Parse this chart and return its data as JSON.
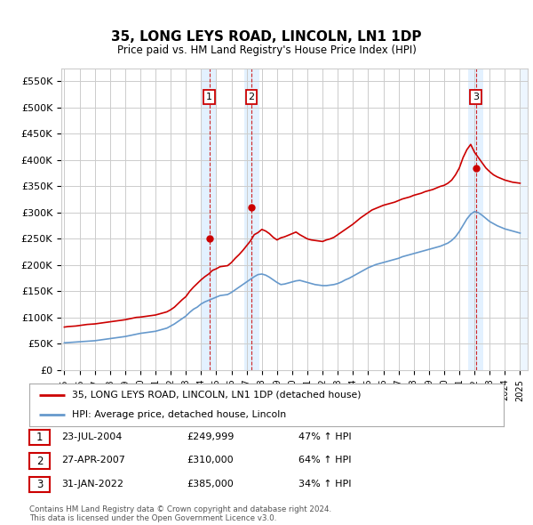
{
  "title": "35, LONG LEYS ROAD, LINCOLN, LN1 1DP",
  "subtitle": "Price paid vs. HM Land Registry's House Price Index (HPI)",
  "ylim": [
    0,
    575000
  ],
  "yticks": [
    0,
    50000,
    100000,
    150000,
    200000,
    250000,
    300000,
    350000,
    400000,
    450000,
    500000,
    550000
  ],
  "ytick_labels": [
    "£0",
    "£50K",
    "£100K",
    "£150K",
    "£200K",
    "£250K",
    "£300K",
    "£350K",
    "£400K",
    "£450K",
    "£500K",
    "£550K"
  ],
  "xlim_start": 1994.8,
  "xlim_end": 2025.5,
  "sale_dates": [
    2004.55,
    2007.32,
    2022.08
  ],
  "sale_prices": [
    249999,
    310000,
    385000
  ],
  "sale_labels": [
    "1",
    "2",
    "3"
  ],
  "sale_date_strs": [
    "23-JUL-2004",
    "27-APR-2007",
    "31-JAN-2022"
  ],
  "sale_price_strs": [
    "£249,999",
    "£310,000",
    "£385,000"
  ],
  "sale_hpi_strs": [
    "47% ↑ HPI",
    "64% ↑ HPI",
    "34% ↑ HPI"
  ],
  "red_color": "#cc0000",
  "blue_color": "#6699cc",
  "shade_color": "#ddeeff",
  "grid_color": "#cccccc",
  "background_color": "#ffffff",
  "legend_label_red": "35, LONG LEYS ROAD, LINCOLN, LN1 1DP (detached house)",
  "legend_label_blue": "HPI: Average price, detached house, Lincoln",
  "footer_text": "Contains HM Land Registry data © Crown copyright and database right 2024.\nThis data is licensed under the Open Government Licence v3.0.",
  "hpi_x": [
    1995.0,
    1995.25,
    1995.5,
    1995.75,
    1996.0,
    1996.25,
    1996.5,
    1996.75,
    1997.0,
    1997.25,
    1997.5,
    1997.75,
    1998.0,
    1998.25,
    1998.5,
    1998.75,
    1999.0,
    1999.25,
    1999.5,
    1999.75,
    2000.0,
    2000.25,
    2000.5,
    2000.75,
    2001.0,
    2001.25,
    2001.5,
    2001.75,
    2002.0,
    2002.25,
    2002.5,
    2002.75,
    2003.0,
    2003.25,
    2003.5,
    2003.75,
    2004.0,
    2004.25,
    2004.5,
    2004.75,
    2005.0,
    2005.25,
    2005.5,
    2005.75,
    2006.0,
    2006.25,
    2006.5,
    2006.75,
    2007.0,
    2007.25,
    2007.5,
    2007.75,
    2008.0,
    2008.25,
    2008.5,
    2008.75,
    2009.0,
    2009.25,
    2009.5,
    2009.75,
    2010.0,
    2010.25,
    2010.5,
    2010.75,
    2011.0,
    2011.25,
    2011.5,
    2011.75,
    2012.0,
    2012.25,
    2012.5,
    2012.75,
    2013.0,
    2013.25,
    2013.5,
    2013.75,
    2014.0,
    2014.25,
    2014.5,
    2014.75,
    2015.0,
    2015.25,
    2015.5,
    2015.75,
    2016.0,
    2016.25,
    2016.5,
    2016.75,
    2017.0,
    2017.25,
    2017.5,
    2017.75,
    2018.0,
    2018.25,
    2018.5,
    2018.75,
    2019.0,
    2019.25,
    2019.5,
    2019.75,
    2020.0,
    2020.25,
    2020.5,
    2020.75,
    2021.0,
    2021.25,
    2021.5,
    2021.75,
    2022.0,
    2022.25,
    2022.5,
    2022.75,
    2023.0,
    2023.25,
    2023.5,
    2023.75,
    2024.0,
    2024.25,
    2024.5,
    2024.75,
    2025.0
  ],
  "hpi_red_y": [
    82000,
    83000,
    83500,
    84000,
    85000,
    86000,
    87000,
    87500,
    88000,
    89000,
    90000,
    91000,
    92000,
    93000,
    94000,
    95000,
    96000,
    97500,
    99000,
    100500,
    101000,
    102000,
    103000,
    104000,
    105000,
    107000,
    109000,
    111000,
    115000,
    120000,
    127000,
    134000,
    140000,
    150000,
    158000,
    165000,
    172000,
    178000,
    183000,
    190000,
    193000,
    197000,
    198000,
    199000,
    205000,
    213000,
    220000,
    228000,
    237000,
    246000,
    258000,
    262000,
    268000,
    265000,
    260000,
    253000,
    248000,
    252000,
    254000,
    257000,
    260000,
    263000,
    258000,
    254000,
    250000,
    248000,
    247000,
    246000,
    245000,
    248000,
    250000,
    253000,
    258000,
    263000,
    268000,
    273000,
    278000,
    284000,
    290000,
    295000,
    300000,
    305000,
    308000,
    311000,
    314000,
    316000,
    318000,
    320000,
    323000,
    326000,
    328000,
    330000,
    333000,
    335000,
    337000,
    340000,
    342000,
    344000,
    347000,
    350000,
    352000,
    356000,
    362000,
    372000,
    385000,
    405000,
    420000,
    430000,
    415000,
    405000,
    395000,
    385000,
    378000,
    372000,
    368000,
    365000,
    362000,
    360000,
    358000,
    357000,
    356000
  ],
  "hpi_blue_y": [
    52000,
    52500,
    53000,
    53500,
    54000,
    54500,
    55000,
    55500,
    56000,
    57000,
    58000,
    59000,
    60000,
    61000,
    62000,
    63000,
    64000,
    65500,
    67000,
    68500,
    70000,
    71000,
    72000,
    73000,
    74000,
    76000,
    78000,
    80000,
    84000,
    88000,
    93000,
    98000,
    103000,
    110000,
    116000,
    120000,
    126000,
    130000,
    133000,
    136000,
    139000,
    142000,
    143000,
    144000,
    148000,
    153000,
    158000,
    163000,
    168000,
    173000,
    178000,
    182000,
    183000,
    181000,
    177000,
    172000,
    167000,
    163000,
    164000,
    166000,
    168000,
    170000,
    171000,
    169000,
    167000,
    165000,
    163000,
    162000,
    161000,
    161000,
    162000,
    163000,
    165000,
    168000,
    172000,
    175000,
    179000,
    183000,
    187000,
    191000,
    195000,
    198000,
    201000,
    203000,
    205000,
    207000,
    209000,
    211000,
    213000,
    216000,
    218000,
    220000,
    222000,
    224000,
    226000,
    228000,
    230000,
    232000,
    234000,
    236000,
    239000,
    242000,
    247000,
    254000,
    264000,
    276000,
    288000,
    297000,
    302000,
    300000,
    295000,
    289000,
    283000,
    279000,
    275000,
    272000,
    269000,
    267000,
    265000,
    263000,
    261000
  ]
}
